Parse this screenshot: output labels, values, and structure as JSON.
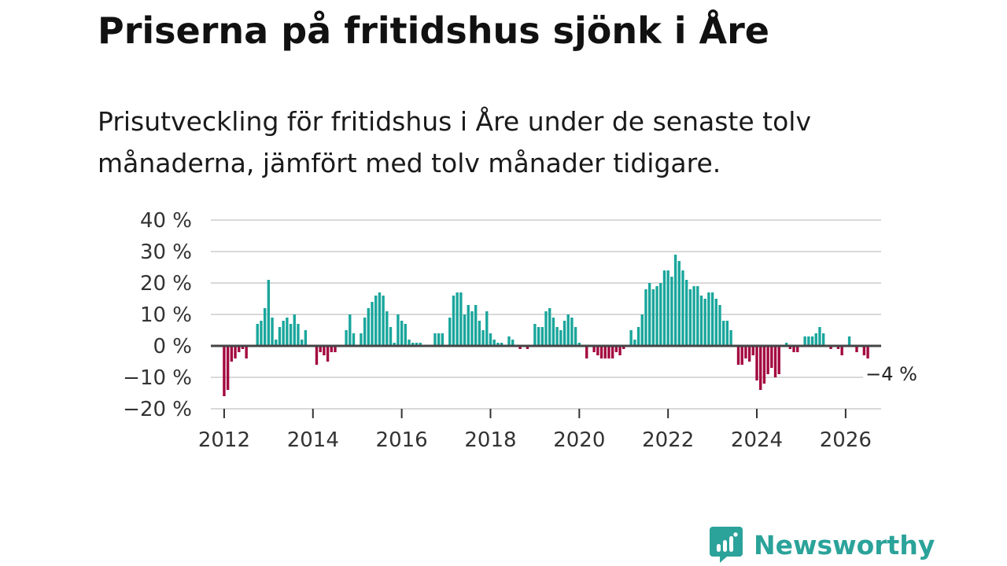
{
  "title": "Priserna på fritidshus sjönk i Åre",
  "subtitle": "Prisutveckling för fritidshus i Åre under de senaste tolv månaderna, jämfört med tolv månader tidigare.",
  "brand": {
    "name": "Newsworthy",
    "icon": "newsworthy-logo-icon",
    "color": "#2ba39a"
  },
  "colors": {
    "positive": "#1aa69c",
    "negative": "#a3073f",
    "zero_line": "#444444",
    "grid": "#d9d9d9"
  },
  "chart_data": {
    "type": "bar",
    "title": "Priserna på fritidshus sjönk i Åre",
    "xlabel": "",
    "ylabel": "",
    "ylim": [
      -20,
      40
    ],
    "yticks": [
      40,
      30,
      20,
      10,
      0,
      -10,
      -20
    ],
    "ytick_labels": [
      "40 %",
      "30 %",
      "20 %",
      "10 %",
      "0 %",
      "−10 %",
      "−20 %"
    ],
    "xlim": [
      2011.7,
      2026.8
    ],
    "xticks": [
      2012,
      2014,
      2016,
      2018,
      2020,
      2022,
      2024,
      2026
    ],
    "xtick_labels": [
      "2012",
      "2014",
      "2016",
      "2018",
      "2020",
      "2022",
      "2024",
      "2026"
    ],
    "start": {
      "year": 2012,
      "month": 1
    },
    "frequency": "monthly",
    "values": [
      -16,
      -14,
      -5,
      -4,
      -2,
      -1,
      -4,
      0,
      0,
      7,
      8,
      12,
      21,
      9,
      2,
      6,
      8,
      9,
      7,
      10,
      7,
      2,
      5,
      0,
      0,
      -6,
      -2,
      -3,
      -5,
      -2,
      -2,
      0,
      0,
      5,
      10,
      4,
      0,
      4,
      9,
      12,
      14,
      16,
      17,
      16,
      11,
      6,
      1,
      10,
      8,
      7,
      2,
      1,
      1,
      1,
      0,
      0,
      0,
      4,
      4,
      4,
      0,
      9,
      16,
      17,
      17,
      10,
      13,
      11,
      13,
      8,
      5,
      11,
      4,
      2,
      1,
      1,
      0,
      3,
      2,
      0,
      -1,
      0,
      -1,
      0,
      7,
      6,
      6,
      11,
      12,
      9,
      6,
      5,
      8,
      10,
      9,
      6,
      1,
      0,
      -4,
      0,
      -2,
      -3,
      -4,
      -4,
      -4,
      -4,
      -2,
      -3,
      -1,
      0,
      5,
      2,
      6,
      10,
      18,
      20,
      18,
      19,
      20,
      24,
      24,
      22,
      29,
      27,
      24,
      21,
      18,
      19,
      19,
      16,
      15,
      17,
      17,
      15,
      13,
      8,
      8,
      5,
      0,
      -6,
      -6,
      -4,
      -5,
      -3,
      -11,
      -14,
      -12,
      -9,
      -7,
      -10,
      -9,
      0,
      1,
      -1,
      -2,
      -2,
      0,
      3,
      3,
      3,
      4,
      6,
      4,
      0,
      -1,
      0,
      -1,
      -3,
      0,
      3,
      0,
      -2,
      0,
      -3,
      -4
    ],
    "annotations": [
      {
        "label": "−4 %",
        "target": "last_value"
      }
    ]
  }
}
